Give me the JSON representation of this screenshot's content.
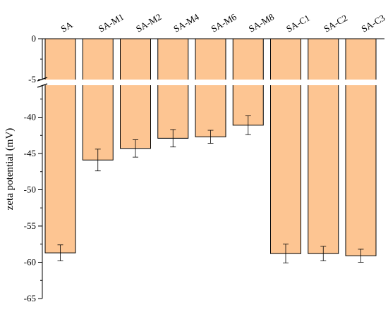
{
  "chart_data": {
    "type": "bar",
    "title": "",
    "xlabel": "",
    "ylabel": "zeta potential (mV)",
    "categories": [
      "SA",
      "SA-M1",
      "SA-M2",
      "SA-M4",
      "SA-M6",
      "SA-M8",
      "SA-C1",
      "SA-C2",
      "SA-C3"
    ],
    "values": [
      -58.7,
      -45.9,
      -44.3,
      -42.9,
      -42.7,
      -41.1,
      -58.8,
      -58.8,
      -59.1
    ],
    "errors": [
      1.1,
      1.5,
      1.2,
      1.2,
      0.9,
      1.3,
      1.3,
      1.0,
      0.9
    ],
    "bar_color": "#FDC592",
    "y_ticks": [
      "0",
      "-5",
      "-40",
      "-45",
      "-50",
      "-55",
      "-60",
      "-65"
    ],
    "y_segments": [
      [
        -5,
        0
      ],
      [
        -65,
        -35
      ]
    ],
    "axis_break": "between -5 and -35",
    "category_axis_position": "top",
    "grid": false,
    "legend": "none"
  }
}
